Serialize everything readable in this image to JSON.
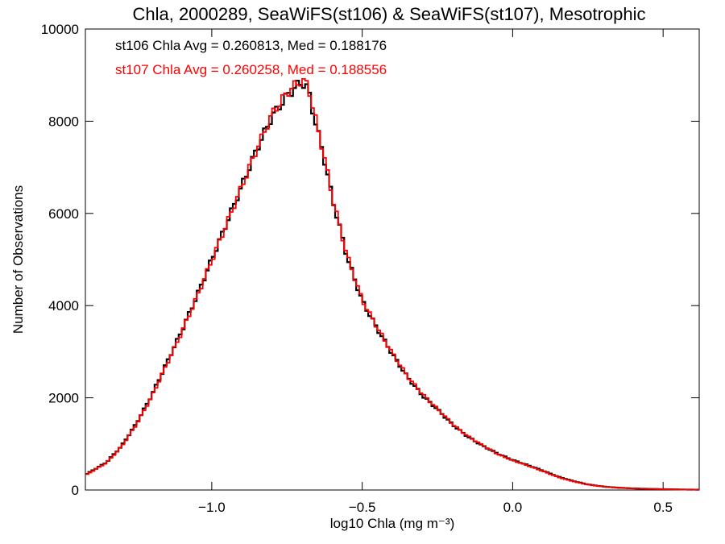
{
  "chart_data": {
    "type": "line",
    "title": "Chla, 2000289, SeaWiFS(st106) & SeaWiFS(st107), Mesotrophic",
    "xlabel": "log10 Chla (mg m⁻³)",
    "ylabel": "Number of Observations",
    "xlim": [
      -1.42,
      0.62
    ],
    "ylim": [
      0,
      10000
    ],
    "xticks": [
      -1.0,
      -0.5,
      0.0,
      0.5
    ],
    "xtick_labels": [
      "−1.0",
      "−0.5",
      "0.0",
      "0.5"
    ],
    "yticks": [
      0,
      2000,
      4000,
      6000,
      8000,
      10000
    ],
    "ytick_labels": [
      "0",
      "2000",
      "4000",
      "6000",
      "8000",
      "10000"
    ],
    "grid": false,
    "annotations": [
      {
        "text": "st106 Chla Avg = 0.260813, Med = 0.188176",
        "color": "#000000"
      },
      {
        "text": "st107 Chla Avg = 0.260258, Med = 0.188556",
        "color": "#ff0000"
      }
    ],
    "x": [
      -1.42,
      -1.35,
      -1.3,
      -1.25,
      -1.2,
      -1.15,
      -1.1,
      -1.05,
      -1.0,
      -0.95,
      -0.9,
      -0.85,
      -0.8,
      -0.75,
      -0.72,
      -0.7,
      -0.68,
      -0.66,
      -0.63,
      -0.6,
      -0.55,
      -0.5,
      -0.45,
      -0.4,
      -0.35,
      -0.3,
      -0.25,
      -0.2,
      -0.15,
      -0.1,
      -0.05,
      0.0,
      0.05,
      0.1,
      0.15,
      0.2,
      0.25,
      0.3,
      0.35,
      0.4,
      0.45,
      0.5,
      0.55,
      0.6,
      0.62
    ],
    "series": [
      {
        "color": "#000000",
        "values": [
          330,
          600,
          950,
          1450,
          2050,
          2750,
          3450,
          4200,
          5000,
          5800,
          6600,
          7400,
          8100,
          8550,
          8750,
          8850,
          8700,
          8100,
          7300,
          6350,
          5050,
          4100,
          3500,
          2950,
          2450,
          2050,
          1750,
          1420,
          1160,
          960,
          790,
          650,
          540,
          420,
          290,
          195,
          120,
          75,
          50,
          35,
          25,
          18,
          12,
          8,
          6
        ]
      },
      {
        "color": "#ff0000",
        "values": [
          320,
          590,
          940,
          1430,
          2020,
          2720,
          3420,
          4180,
          4980,
          5780,
          6590,
          7400,
          8150,
          8620,
          8800,
          8880,
          8780,
          8180,
          7350,
          6380,
          5080,
          4120,
          3520,
          2970,
          2470,
          2080,
          1760,
          1430,
          1170,
          970,
          780,
          640,
          530,
          410,
          280,
          190,
          115,
          72,
          48,
          33,
          24,
          17,
          11,
          8,
          6
        ]
      }
    ]
  }
}
